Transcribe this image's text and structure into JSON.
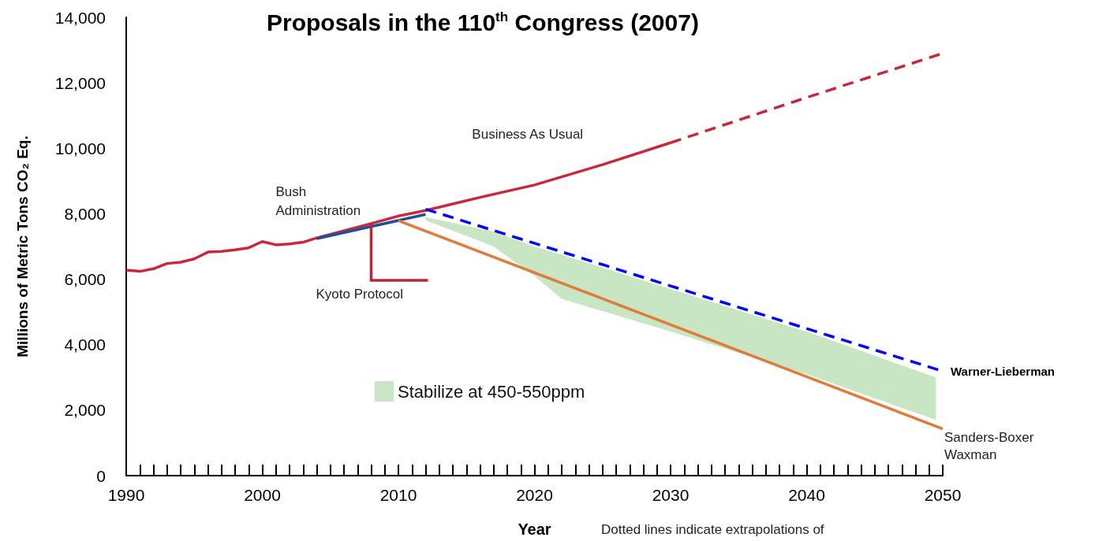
{
  "chart_data": {
    "type": "line",
    "title": "Proposals in the 110$^{th}$ Congress (2007)",
    "xlabel": "Year",
    "ylabel": "Millions of Metric Tons CO₂ Eq.",
    "xlim": [
      1990,
      2050
    ],
    "ylim": [
      0,
      14000
    ],
    "xticks": [
      1990,
      {
        "value": 1991,
        "label": null
      },
      {
        "value": 1992,
        "label": null
      },
      {
        "value": 1993,
        "label": null
      },
      {
        "value": 1994,
        "label": null
      },
      {
        "value": 1995,
        "label": null
      },
      {
        "value": 1996,
        "label": null
      },
      {
        "value": 1997,
        "label": null
      },
      {
        "value": 1998,
        "label": null
      },
      {
        "value": 1999,
        "label": null
      },
      2000,
      {
        "value": 2001,
        "label": null
      },
      {
        "value": 2002,
        "label": null
      },
      {
        "value": 2003,
        "label": null
      },
      {
        "value": 2004,
        "label": null
      },
      {
        "value": 2005,
        "label": null
      },
      {
        "value": 2006,
        "label": null
      },
      {
        "value": 2007,
        "label": null
      },
      {
        "value": 2008,
        "label": null
      },
      {
        "value": 2009,
        "label": null
      },
      2010,
      {
        "value": 2011,
        "label": null
      },
      {
        "value": 2012,
        "label": null
      },
      {
        "value": 2013,
        "label": null
      },
      {
        "value": 2014,
        "label": null
      },
      {
        "value": 2015,
        "label": null
      },
      {
        "value": 2016,
        "label": null
      },
      {
        "value": 2017,
        "label": null
      },
      {
        "value": 2018,
        "label": null
      },
      {
        "value": 2019,
        "label": null
      },
      2020,
      {
        "value": 2021,
        "label": null
      },
      {
        "value": 2022,
        "label": null
      },
      {
        "value": 2023,
        "label": null
      },
      {
        "value": 2024,
        "label": null
      },
      {
        "value": 2025,
        "label": null
      },
      {
        "value": 2026,
        "label": null
      },
      {
        "value": 2027,
        "label": null
      },
      {
        "value": 2028,
        "label": null
      },
      {
        "value": 2029,
        "label": null
      },
      2030,
      {
        "value": 2031,
        "label": null
      },
      {
        "value": 2032,
        "label": null
      },
      {
        "value": 2033,
        "label": null
      },
      {
        "value": 2034,
        "label": null
      },
      {
        "value": 2035,
        "label": null
      },
      {
        "value": 2036,
        "label": null
      },
      {
        "value": 2037,
        "label": null
      },
      {
        "value": 2038,
        "label": null
      },
      {
        "value": 2039,
        "label": null
      },
      2040,
      {
        "value": 2041,
        "label": null
      },
      {
        "value": 2042,
        "label": null
      },
      {
        "value": 2043,
        "label": null
      },
      {
        "value": 2044,
        "label": null
      },
      {
        "value": 2045,
        "label": null
      },
      {
        "value": 2046,
        "label": null
      },
      {
        "value": 2047,
        "label": null
      },
      {
        "value": 2048,
        "label": null
      },
      {
        "value": 2049,
        "label": null
      },
      2050
    ],
    "yticks": [
      0,
      {
        "value": 2000,
        "label": "2,000"
      },
      {
        "value": 4000,
        "label": "4,000"
      },
      {
        "value": 6000,
        "label": "6,000"
      },
      {
        "value": 8000,
        "label": "8,000"
      },
      {
        "value": 10000,
        "label": "10,000"
      },
      {
        "value": 12000,
        "label": "12,000"
      },
      {
        "value": 14000,
        "label": "14,000"
      }
    ],
    "grid": false,
    "legend": "bottom left",
    "marker": "none",
    "series": [
      {
        "name": "Stabilize at 450-550ppm",
        "color": "#c8e6c4",
        "x": [
          2012,
          2017,
          2020,
          2022,
          2030,
          2040,
          2049.5
        ],
        "values": [
          null,
          null,
          null,
          null,
          null,
          null,
          null
        ],
        "lower": [
          7800,
          7000,
          6100,
          5400,
          4400,
          3100,
          1700
        ],
        "upper": [
          7900,
          7450,
          7000,
          6750,
          5700,
          4400,
          3000
        ]
      },
      {
        "name": "Business As Usual",
        "color": "#c8283a",
        "line_style": "solid",
        "x": [
          1990,
          1991,
          1992,
          1993,
          1994,
          1995,
          1996,
          1997,
          1998,
          1999,
          2000,
          2001,
          2002,
          2003,
          2004,
          2008,
          2010,
          2012,
          2016,
          2020,
          2025,
          2030
        ],
        "values": [
          6280,
          6240,
          6320,
          6480,
          6520,
          6620,
          6830,
          6850,
          6900,
          6960,
          7150,
          7050,
          7080,
          7130,
          7260,
          7700,
          7930,
          8100,
          8500,
          8880,
          9500,
          10170
        ]
      },
      {
        "color": "#c8283a",
        "line_style": "dashed",
        "x": [
          2030,
          2040,
          2050
        ],
        "values": [
          10170,
          11550,
          12900
        ]
      },
      {
        "name": "Bush Administration",
        "color": "#1f4e9a",
        "line_style": "solid",
        "x": [
          2004,
          2012
        ],
        "values": [
          7240,
          7980
        ]
      },
      {
        "name": "Sanders-Boxer Waxman",
        "color": "#e07b39",
        "line_style": "solid",
        "x": [
          2010,
          2050
        ],
        "values": [
          7790,
          1430
        ]
      },
      {
        "name": "Warner-Lieberman",
        "color": "#0000ff",
        "line_style": "dashed",
        "x": [
          2012,
          2050
        ],
        "values": [
          8140,
          3190
        ]
      }
    ],
    "annotations": [
      {
        "text": "Kyoto Protocol",
        "x": 2008,
        "y": 7700
      },
      "Dotted lines indicate extrapolations of"
    ]
  }
}
